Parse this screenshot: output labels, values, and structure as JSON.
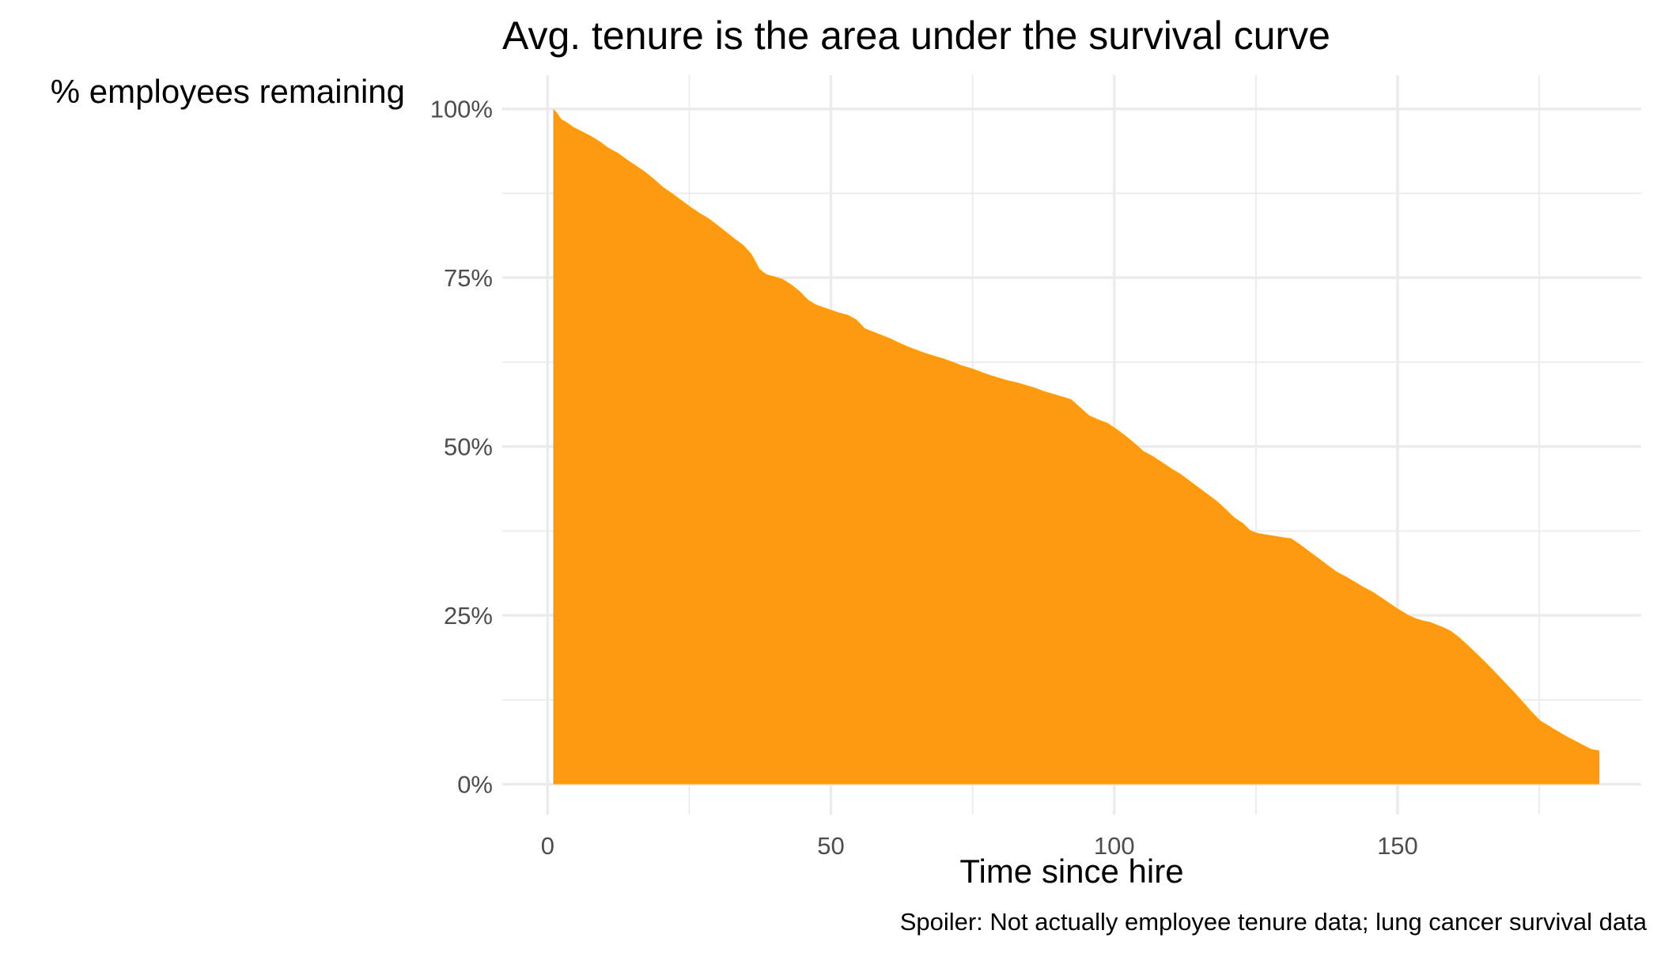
{
  "chart_data": {
    "type": "area",
    "title": "Avg. tenure is the area under the survival curve",
    "ylabel": "% employees remaining",
    "xlabel": "Time since hire",
    "caption": "Spoiler: Not actually employee tenure data; lung cancer survival data",
    "fill_color": "#FE9A10",
    "grid": true,
    "xlim": [
      -8,
      193
    ],
    "ylim": [
      -4.5,
      105
    ],
    "x_ticks": [
      0,
      50,
      100,
      150
    ],
    "x_tick_labels": [
      "0",
      "50",
      "100",
      "150"
    ],
    "y_ticks": [
      0,
      25,
      50,
      75,
      100
    ],
    "y_tick_labels": [
      "0%",
      "25%",
      "50%",
      "75%",
      "100%"
    ],
    "series": [
      {
        "x": [
          1,
          1.6,
          2.4,
          3.4,
          4.6,
          6,
          7.6,
          9.2,
          10.8,
          12.4,
          14,
          15.6,
          17.2,
          18.8,
          20.4,
          22,
          23.6,
          25.2,
          26.8,
          28.4,
          30,
          31.5,
          33,
          34.6,
          36,
          37.4,
          38.6,
          40,
          41.5,
          43,
          44.5,
          46,
          47.4,
          48.8,
          50.2,
          51.6,
          53,
          54.5,
          56,
          57.5,
          59,
          60.5,
          62,
          63.6,
          65.2,
          66.8,
          68.4,
          70,
          71.6,
          73.2,
          74.8,
          76.4,
          78,
          79.6,
          81.2,
          82.8,
          84.4,
          86,
          87.6,
          89.2,
          90.8,
          92.4,
          94,
          95.6,
          97.2,
          98.8,
          100.4,
          102,
          103.6,
          105.2,
          106.8,
          108.4,
          110,
          111.6,
          113.2,
          114.8,
          116.4,
          118,
          119.6,
          121.2,
          122.8,
          124,
          125.2,
          126.6,
          128,
          129.6,
          131.2,
          132.8,
          134.4,
          136,
          137.6,
          139.2,
          140.8,
          142.4,
          144,
          145.6,
          147.2,
          148.8,
          150.4,
          152,
          153.4,
          154.6,
          155.8,
          157,
          158.2,
          159.4,
          160.8,
          162.4,
          164,
          165.6,
          167.2,
          168.8,
          170.4,
          172,
          173.6,
          175.2,
          176.4,
          177.6,
          178.8,
          180,
          181.4,
          182.8,
          184.2,
          185.6
        ],
        "values": [
          100,
          99.5,
          98.5,
          98,
          97.3,
          96.7,
          96,
          95.2,
          94.2,
          93.5,
          92.5,
          91.6,
          90.7,
          89.6,
          88.4,
          87.5,
          86.5,
          85.5,
          84.6,
          83.8,
          82.8,
          81.8,
          80.8,
          79.8,
          78.5,
          76.3,
          75.5,
          75.2,
          74.8,
          74,
          73,
          71.7,
          71,
          70.6,
          70.2,
          69.8,
          69.5,
          68.8,
          67.5,
          67,
          66.5,
          66,
          65.4,
          64.8,
          64.3,
          63.8,
          63.4,
          63,
          62.5,
          62,
          61.6,
          61.1,
          60.6,
          60.2,
          59.8,
          59.5,
          59.1,
          58.7,
          58.2,
          57.8,
          57.4,
          57,
          55.8,
          54.6,
          54,
          53.5,
          52.6,
          51.6,
          50.5,
          49.3,
          48.6,
          47.7,
          46.8,
          46,
          45,
          44,
          43,
          42,
          40.8,
          39.5,
          38.6,
          37.6,
          37.2,
          37,
          36.8,
          36.6,
          36.4,
          35.5,
          34.5,
          33.5,
          32.5,
          31.5,
          30.8,
          30,
          29.2,
          28.5,
          27.6,
          26.7,
          25.8,
          25,
          24.5,
          24.2,
          24,
          23.6,
          23.2,
          22.7,
          21.8,
          20.6,
          19.3,
          18,
          16.6,
          15.2,
          13.8,
          12.3,
          10.8,
          9.4,
          8.8,
          8.2,
          7.6,
          7,
          6.4,
          5.8,
          5.2,
          5
        ]
      }
    ]
  }
}
